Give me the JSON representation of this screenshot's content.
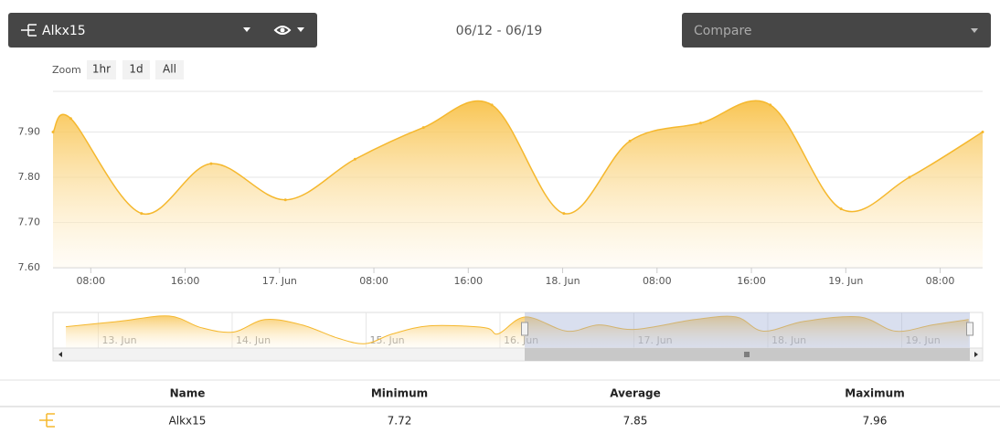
{
  "toolbar": {
    "selected": "Alkx15",
    "date_range": "06/12 - 06/19",
    "compare": "Compare"
  },
  "zoom": {
    "label": "Zoom",
    "buttons": [
      "1hr",
      "1d",
      "All"
    ]
  },
  "chart_data": {
    "type": "area",
    "x": [
      4.8,
      6.3,
      12.3,
      18.2,
      24.5,
      30.4,
      36.2,
      42.0,
      48.1,
      53.7,
      59.7,
      65.6,
      71.6,
      77.4,
      83.6
    ],
    "values": [
      7.9,
      7.93,
      7.72,
      7.83,
      7.75,
      7.84,
      7.91,
      7.96,
      7.72,
      7.88,
      7.92,
      7.96,
      7.73,
      7.8,
      7.9
    ],
    "color": "#f5b82e",
    "xlim": [
      4.8,
      83.6
    ],
    "xticks": [
      {
        "value": 8,
        "label": "08:00"
      },
      {
        "value": 16,
        "label": "16:00"
      },
      {
        "value": 24,
        "label": "17. Jun"
      },
      {
        "value": 32,
        "label": "08:00"
      },
      {
        "value": 40,
        "label": "16:00"
      },
      {
        "value": 48,
        "label": "18. Jun"
      },
      {
        "value": 56,
        "label": "08:00"
      },
      {
        "value": 64,
        "label": "16:00"
      },
      {
        "value": 72,
        "label": "19. Jun"
      },
      {
        "value": 80,
        "label": "08:00"
      }
    ],
    "ylim": [
      7.6,
      7.99
    ],
    "yticks": [
      {
        "value": 7.6,
        "label": "7.60"
      },
      {
        "value": 7.7,
        "label": "7.70"
      },
      {
        "value": 7.8,
        "label": "7.80"
      },
      {
        "value": 7.9,
        "label": "7.90"
      }
    ],
    "grid": true
  },
  "navigator": {
    "x": [
      -77.8,
      -68.3,
      -59.3,
      -53.6,
      -47.8,
      -42.1,
      -35.5,
      -29.0,
      -24.1,
      -19.2,
      -12.6,
      -2.8,
      -0.3,
      4.6,
      12.0,
      17.7,
      24.2,
      34.9,
      42.3,
      47.2,
      54.5,
      64.4,
      70.9,
      77.5,
      84.0
    ],
    "values": [
      7.84,
      7.9,
      7.96,
      7.83,
      7.78,
      7.92,
      7.86,
      7.71,
      7.65,
      7.76,
      7.85,
      7.83,
      7.76,
      7.95,
      7.79,
      7.86,
      7.81,
      7.92,
      7.95,
      7.79,
      7.9,
      7.95,
      7.79,
      7.86,
      7.92
    ],
    "xlim": [
      -80.1,
      86.5
    ],
    "ylim": [
      7.6,
      8.0
    ],
    "xticks": [
      {
        "value": -72,
        "label": "13. Jun"
      },
      {
        "value": -48,
        "label": "14. Jun"
      },
      {
        "value": -24,
        "label": "15. Jun"
      },
      {
        "value": 0,
        "label": "16. Jun"
      },
      {
        "value": 24,
        "label": "17. Jun"
      },
      {
        "value": 48,
        "label": "18. Jun"
      },
      {
        "value": 72,
        "label": "19. Jun"
      }
    ]
  },
  "table": {
    "headers": [
      "Name",
      "Minimum",
      "Average",
      "Maximum"
    ],
    "rows": [
      [
        "Alkx15",
        "7.72",
        "7.85",
        "7.96"
      ]
    ]
  }
}
